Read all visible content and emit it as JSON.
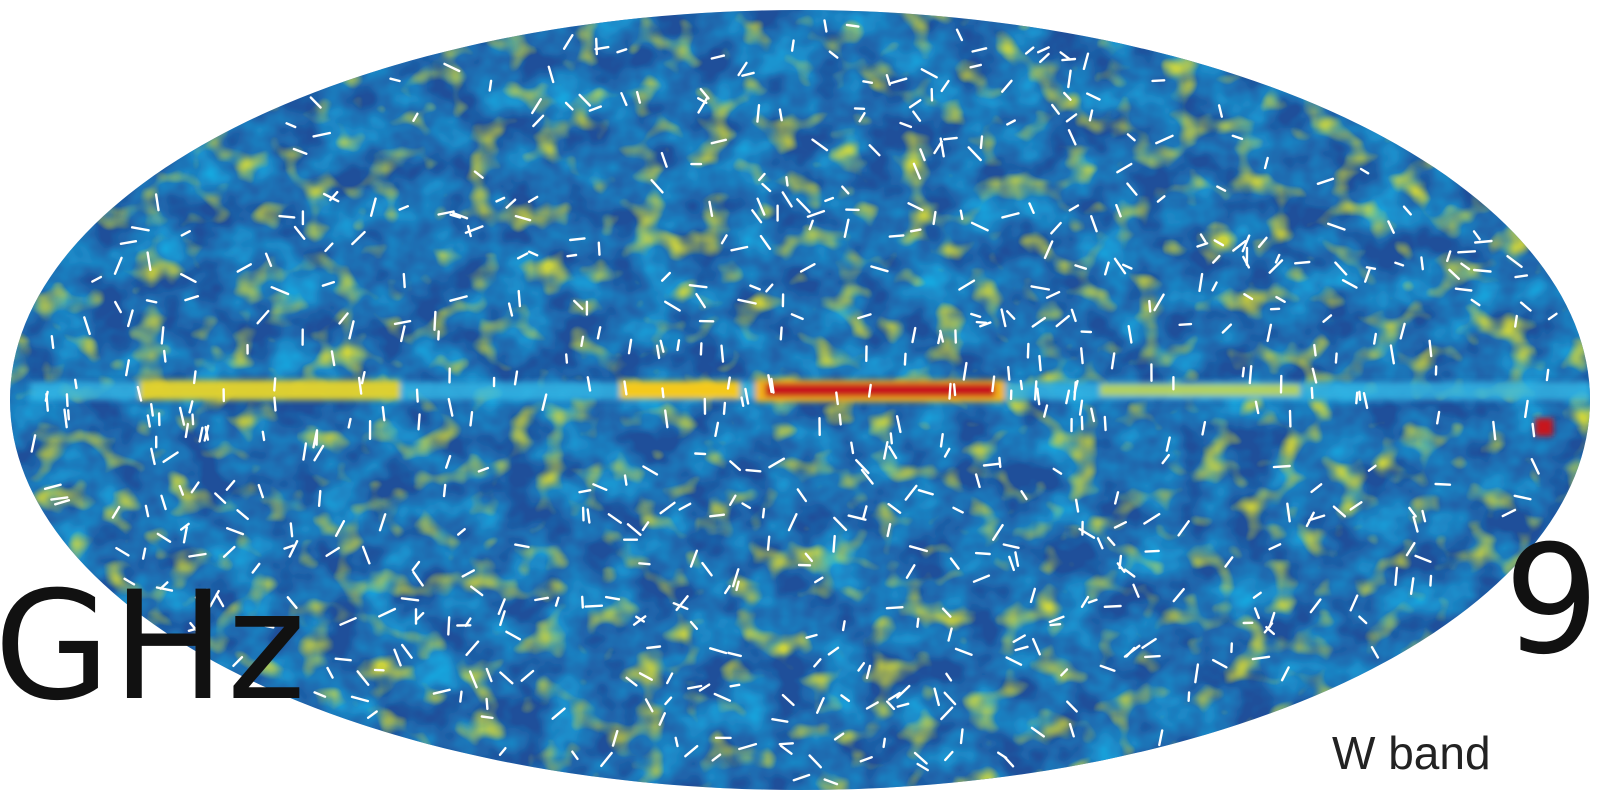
{
  "labels": {
    "left_fragment": "GHz",
    "right_fragment": "9",
    "band": "W band"
  },
  "map": {
    "projection": "mollweide",
    "colors": {
      "background_low": "#1e4f9c",
      "mid": "#1aa6dd",
      "high": "#f2e21a",
      "peak": "#c81414",
      "vectors": "#ffffff"
    }
  }
}
